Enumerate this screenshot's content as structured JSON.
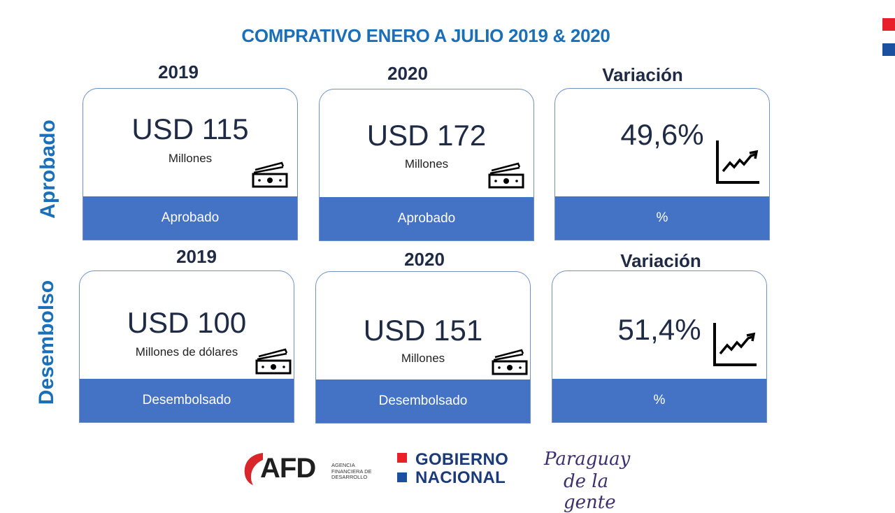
{
  "title": "COMPRATIVO ENERO A JULIO 2019 & 2020",
  "sections": {
    "aprobado": {
      "side_label": "Aprobado",
      "headers": [
        "2019",
        "2020",
        "Variación"
      ],
      "cards": [
        {
          "value": "USD 115",
          "unit": "Millones",
          "footer": "Aprobado",
          "icon": "money-icon"
        },
        {
          "value": "USD 172",
          "unit": "Millones",
          "footer": "Aprobado",
          "icon": "money-icon"
        },
        {
          "value": "49,6%",
          "unit": "",
          "footer": "%",
          "icon": "trend-up-icon"
        }
      ]
    },
    "desembolso": {
      "side_label": "Desembolso",
      "headers": [
        "2019",
        "2020",
        "Variación"
      ],
      "cards": [
        {
          "value": "USD 100",
          "unit": "Millones de dólares",
          "footer": "Desembolsado",
          "icon": "money-icon"
        },
        {
          "value": "USD 151",
          "unit": "Millones",
          "footer": "Desembolsado",
          "icon": "money-icon"
        },
        {
          "value": "51,4%",
          "unit": "",
          "footer": "%",
          "icon": "trend-up-icon"
        }
      ]
    }
  },
  "logos": {
    "afd": {
      "word": "AFD",
      "small": "AGENCIA FINANCIERA DE DESARROLLO"
    },
    "gobierno": {
      "line1": "GOBIERNO",
      "line2": "NACIONAL"
    },
    "paraguay": {
      "line1": "Paraguay",
      "line2": "de la gente"
    }
  },
  "colors": {
    "accent_blue": "#1a6fb8",
    "footer_blue": "#4472c4",
    "dark_text": "#1f2a44",
    "flag_red": "#e8202a",
    "flag_blue": "#1b4fa0"
  }
}
